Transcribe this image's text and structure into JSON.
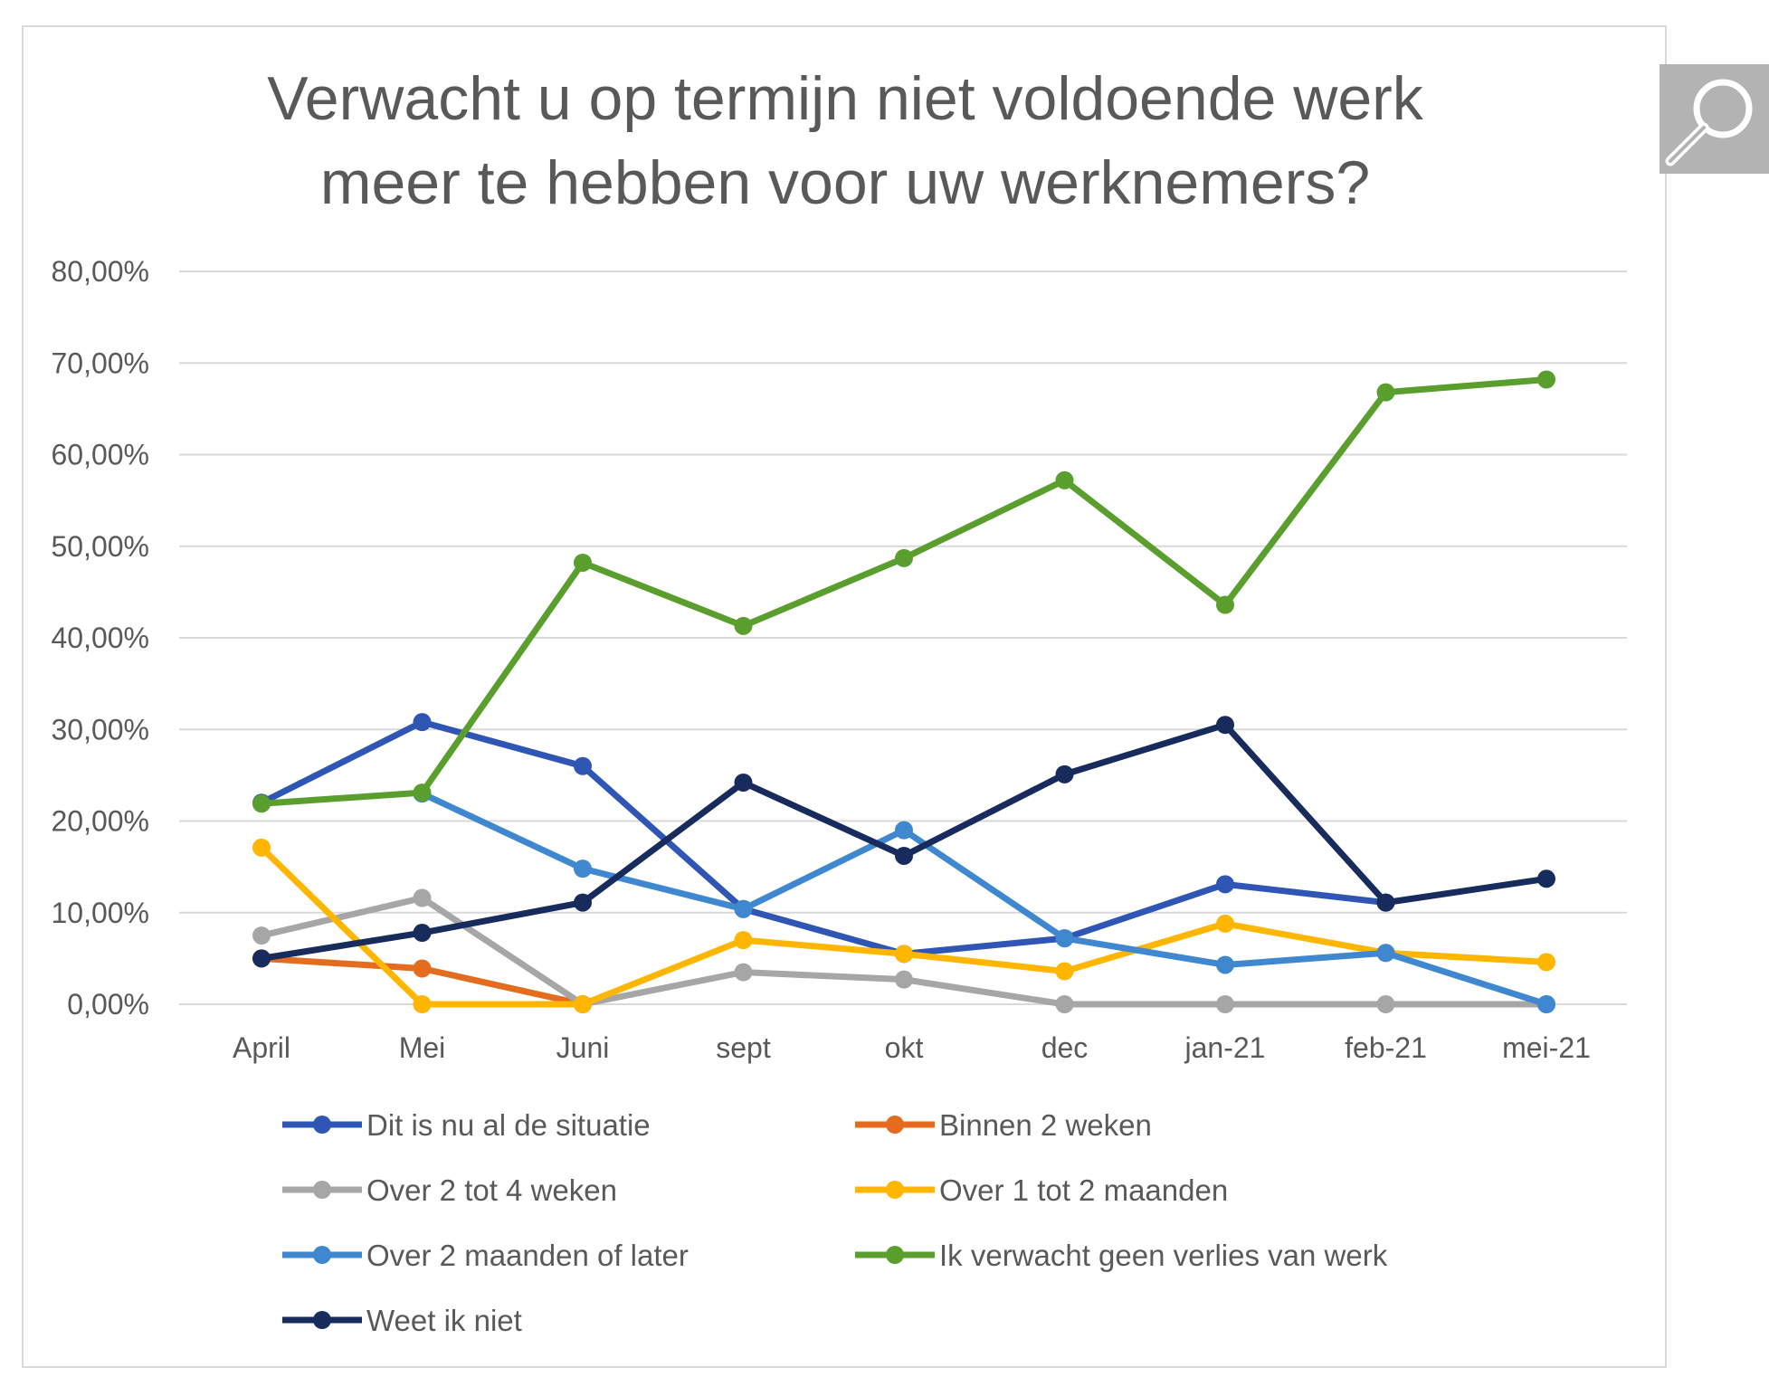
{
  "chart_data": {
    "type": "line",
    "title_lines": [
      "Verwacht u op termijn niet voldoende werk",
      "meer te hebben voor uw werknemers?"
    ],
    "categories": [
      "April",
      "Mei",
      "Juni",
      "sept",
      "okt",
      "dec",
      "jan-21",
      "feb-21",
      "mei-21"
    ],
    "y_ticks": [
      "0,00%",
      "10,00%",
      "20,00%",
      "30,00%",
      "40,00%",
      "50,00%",
      "60,00%",
      "70,00%",
      "80,00%"
    ],
    "ylim": [
      0,
      80
    ],
    "y_unit": "%",
    "grid": true,
    "legend_position": "bottom",
    "series": [
      {
        "name": "Dit is nu al de situatie",
        "color": "#2f55b5",
        "values": [
          22.0,
          30.8,
          26.0,
          10.4,
          5.5,
          7.2,
          13.1,
          11.1,
          null
        ]
      },
      {
        "name": "Binnen 2 weken",
        "color": "#e36c1e",
        "values": [
          5.0,
          3.9,
          0.0,
          null,
          null,
          null,
          null,
          null,
          null
        ]
      },
      {
        "name": "Over 2 tot 4 weken",
        "color": "#a6a6a6",
        "values": [
          7.5,
          11.6,
          0.0,
          3.5,
          2.7,
          0.0,
          0.0,
          0.0,
          0.0
        ]
      },
      {
        "name": "Over 1 tot 2 maanden",
        "color": "#ffb600",
        "values": [
          17.1,
          0.0,
          0.0,
          7.0,
          5.5,
          3.6,
          8.8,
          5.6,
          4.6
        ]
      },
      {
        "name": "Over 2 maanden of later",
        "color": "#3f88d0",
        "values": [
          null,
          23.0,
          14.8,
          10.4,
          19.0,
          7.2,
          4.3,
          5.6,
          0.0
        ]
      },
      {
        "name": "Ik verwacht geen verlies van werk",
        "color": "#5a9e2e",
        "values": [
          21.9,
          23.1,
          48.2,
          41.3,
          48.7,
          57.2,
          43.6,
          66.8,
          68.2
        ]
      },
      {
        "name": "Weet ik niet",
        "color": "#172b5c",
        "values": [
          5.0,
          7.8,
          11.1,
          24.2,
          16.2,
          25.1,
          30.5,
          11.1,
          13.7
        ]
      }
    ]
  },
  "zoom_icon": "magnifier-icon"
}
